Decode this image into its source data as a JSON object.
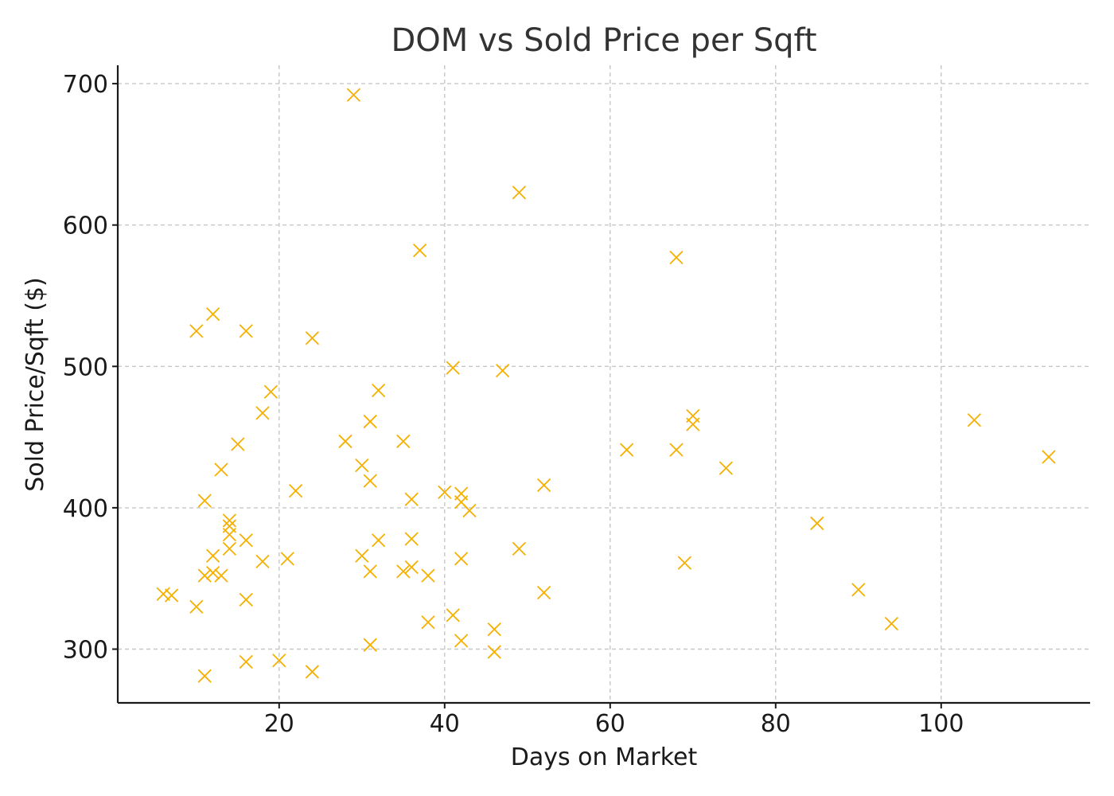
{
  "chart_data": {
    "type": "scatter",
    "title": "DOM vs Sold Price per Sqft",
    "xlabel": "Days on Market",
    "ylabel": "Sold Price/Sqft ($)",
    "xlim": [
      0.5,
      118
    ],
    "ylim": [
      262,
      713
    ],
    "xticks": [
      20,
      40,
      60,
      80,
      100
    ],
    "yticks": [
      300,
      400,
      500,
      600,
      700
    ],
    "grid": true,
    "marker": "x",
    "color": "#f5b000",
    "x": [
      29,
      49,
      37,
      68,
      12,
      10,
      16,
      24,
      41,
      47,
      32,
      19,
      18,
      31,
      70,
      70,
      104,
      28,
      35,
      15,
      30,
      13,
      62,
      68,
      113,
      74,
      31,
      52,
      22,
      40,
      42,
      36,
      11,
      42,
      43,
      14,
      14,
      14,
      85,
      32,
      36,
      16,
      14,
      49,
      12,
      30,
      21,
      18,
      42,
      69,
      35,
      36,
      31,
      11,
      13,
      12,
      38,
      52,
      90,
      6,
      7,
      16,
      10,
      41,
      38,
      94,
      46,
      42,
      31,
      46,
      20,
      16,
      24,
      11
    ],
    "y": [
      692,
      623,
      582,
      577,
      537,
      525,
      525,
      520,
      499,
      497,
      483,
      482,
      467,
      461,
      465,
      459,
      462,
      447,
      447,
      445,
      430,
      427,
      441,
      441,
      436,
      428,
      419,
      416,
      412,
      411,
      410,
      406,
      405,
      404,
      398,
      391,
      387,
      381,
      389,
      377,
      378,
      377,
      371,
      371,
      366,
      366,
      364,
      362,
      364,
      361,
      355,
      358,
      355,
      352,
      352,
      354,
      352,
      340,
      342,
      339,
      338,
      335,
      330,
      324,
      319,
      318,
      314,
      306,
      303,
      298,
      292,
      291,
      284,
      281
    ]
  }
}
